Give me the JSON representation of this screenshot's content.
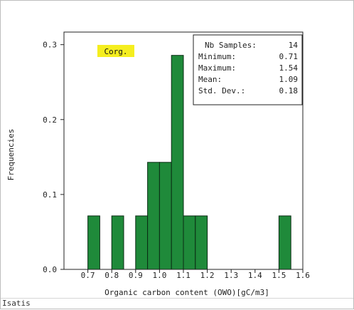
{
  "footer": {
    "label": "Isatis"
  },
  "chart_data": {
    "type": "bar",
    "title": "",
    "xlabel": "Organic carbon content (OWO)[gC/m3]",
    "ylabel": "Frequencies",
    "xlim": [
      0.6,
      1.6
    ],
    "ylim": [
      0,
      0.3168
    ],
    "xticks": [
      "0.7",
      "0.8",
      "0.9",
      "1.0",
      "1.1",
      "1.2",
      "1.3",
      "1.4",
      "1.5",
      "1.6"
    ],
    "yticks": [
      "0.0",
      "0.1",
      "0.2",
      "0.3"
    ],
    "bin_width": 0.05,
    "bins": [
      {
        "from": 0.7,
        "to": 0.75,
        "value": 0.0714
      },
      {
        "from": 0.8,
        "to": 0.85,
        "value": 0.0714
      },
      {
        "from": 0.9,
        "to": 0.95,
        "value": 0.0714
      },
      {
        "from": 0.95,
        "to": 1.0,
        "value": 0.1429
      },
      {
        "from": 1.0,
        "to": 1.05,
        "value": 0.1429
      },
      {
        "from": 1.05,
        "to": 1.1,
        "value": 0.2857
      },
      {
        "from": 1.1,
        "to": 1.15,
        "value": 0.0714
      },
      {
        "from": 1.15,
        "to": 1.2,
        "value": 0.0714
      },
      {
        "from": 1.5,
        "to": 1.55,
        "value": 0.0714
      }
    ],
    "bar_color": "#1f8a3a",
    "variable_label": "Corg.",
    "variable_label_color": "#f5ee1f",
    "stats": [
      {
        "label": "Nb Samples:",
        "value": "14"
      },
      {
        "label": "Minimum:",
        "value": "0.71"
      },
      {
        "label": "Maximum:",
        "value": "1.54"
      },
      {
        "label": "Mean:",
        "value": "1.09"
      },
      {
        "label": "Std. Dev.:",
        "value": "0.18"
      }
    ]
  }
}
